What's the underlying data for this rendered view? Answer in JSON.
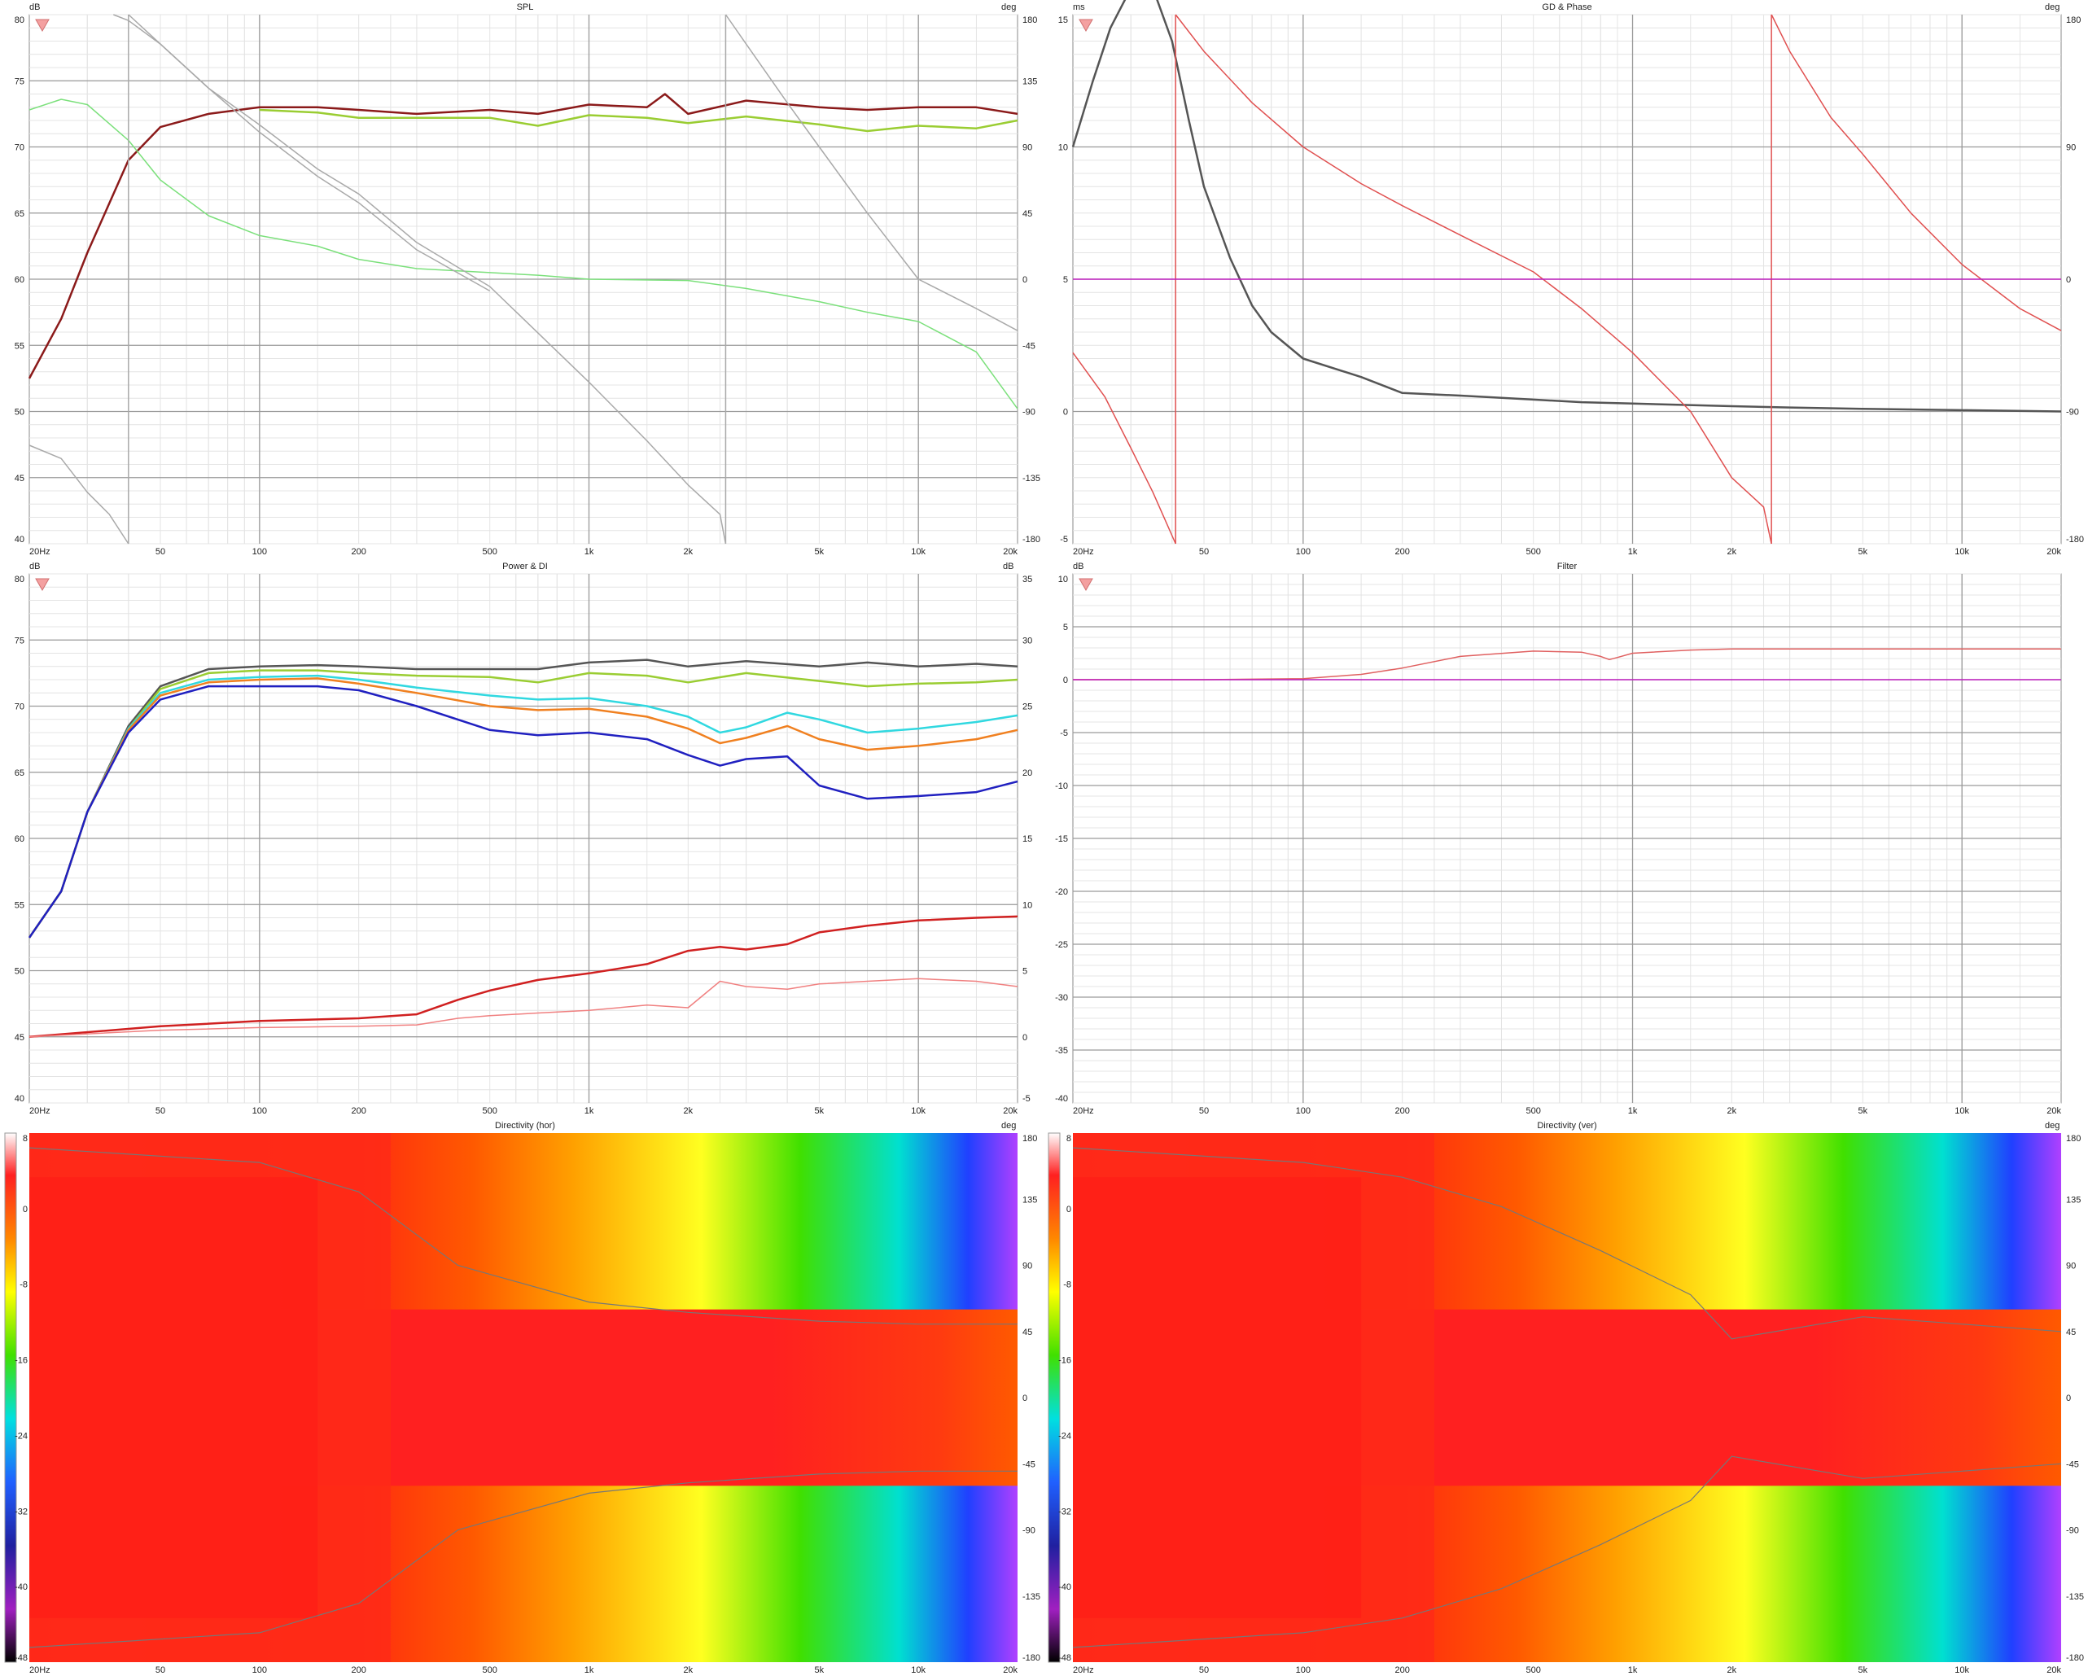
{
  "freq_ticks": [
    "20Hz",
    "50",
    "100",
    "200",
    "500",
    "1k",
    "2k",
    "5k",
    "10k",
    "20k"
  ],
  "panels": {
    "spl": {
      "title": "SPL",
      "left_unit": "dB",
      "right_unit": "deg",
      "left_ticks": [
        "75",
        "70",
        "65",
        "60",
        "55",
        "50",
        "45",
        "40"
      ],
      "left_top_label": "",
      "right_ticks": [
        "180",
        "135",
        "90",
        "45",
        "0",
        "-45",
        "-90",
        "-135",
        "-180"
      ]
    },
    "gd": {
      "title": "GD & Phase",
      "left_unit": "ms",
      "right_unit": "deg",
      "left_ticks": [
        "15",
        "10",
        "5",
        "0",
        "-5"
      ],
      "right_ticks": [
        "180",
        "90",
        "0",
        "-90",
        "-180"
      ]
    },
    "power": {
      "title": "Power & DI",
      "left_unit": "dB",
      "right_unit": "dB",
      "left_ticks": [
        "80",
        "75",
        "70",
        "65",
        "60",
        "55",
        "50",
        "45",
        "40"
      ],
      "right_ticks": [
        "35",
        "30",
        "25",
        "20",
        "15",
        "10",
        "5",
        "0",
        "-5"
      ]
    },
    "filter": {
      "title": "Filter",
      "left_unit": "dB",
      "left_ticks": [
        "10",
        "5",
        "0",
        "-5",
        "-10",
        "-15",
        "-20",
        "-25",
        "-30",
        "-35",
        "-40"
      ]
    },
    "dir_h": {
      "title": "Directivity (hor)",
      "right_unit": "deg",
      "scale_ticks": [
        "8",
        "0",
        "-8",
        "-16",
        "-24",
        "-32",
        "-40",
        "-48"
      ],
      "right_ticks": [
        "180",
        "135",
        "90",
        "45",
        "0",
        "-45",
        "-90",
        "-135",
        "-180"
      ]
    },
    "dir_v": {
      "title": "Directivity (ver)",
      "right_unit": "deg",
      "scale_ticks": [
        "8",
        "0",
        "-8",
        "-16",
        "-24",
        "-32",
        "-40",
        "-48"
      ],
      "right_ticks": [
        "180",
        "135",
        "90",
        "45",
        "0",
        "-45",
        "-90",
        "-135",
        "-180"
      ]
    }
  },
  "colors": {
    "on_axis": "#8b1a1a",
    "listening_window": "#9acd32",
    "spl_green": "#7be07b",
    "phase_gray": "#a9a9a9",
    "gd_gray": "#555555",
    "phase_red": "#e05050",
    "zero_line": "#c020c0",
    "ew": "#30d8e0",
    "pir": "#f08020",
    "sp": "#2020c0",
    "di_sp": "#d02020",
    "di_er": "#f08080",
    "filter": "#e06060"
  },
  "chart_data": [
    {
      "type": "line",
      "title": "SPL",
      "xscale": "log",
      "xlim": [
        20,
        20000
      ],
      "ylim": [
        40,
        80
      ],
      "y2lim": [
        -180,
        180
      ],
      "series": [
        {
          "color_key": "on_axis",
          "x": [
            20,
            25,
            30,
            40,
            50,
            70,
            100,
            150,
            200,
            300,
            500,
            700,
            1000,
            1500,
            1700,
            2000,
            3000,
            5000,
            7000,
            10000,
            15000,
            20000
          ],
          "y": [
            52.5,
            57,
            62,
            69,
            71.5,
            72.5,
            73,
            73,
            72.8,
            72.5,
            72.8,
            72.5,
            73.2,
            73,
            74,
            72.5,
            73.5,
            73,
            72.8,
            73,
            73,
            72.5
          ]
        },
        {
          "color_key": "listening_window",
          "x": [
            100,
            150,
            200,
            300,
            500,
            700,
            1000,
            1500,
            2000,
            3000,
            5000,
            7000,
            10000,
            15000,
            20000
          ],
          "y": [
            72.8,
            72.6,
            72.2,
            72.2,
            72.2,
            71.6,
            72.4,
            72.2,
            71.8,
            72.3,
            71.7,
            71.2,
            71.6,
            71.4,
            72
          ]
        },
        {
          "color_key": "spl_green",
          "x": [
            20,
            25,
            30,
            40,
            50,
            70,
            100,
            150,
            200,
            300,
            500,
            700,
            1000,
            2000,
            3000,
            5000,
            7000,
            10000,
            15000,
            20000
          ],
          "y": [
            72.8,
            73.6,
            73.2,
            70.5,
            67.5,
            64.8,
            63.3,
            62.5,
            61.5,
            60.8,
            60.5,
            60.3,
            60,
            59.9,
            59.3,
            58.3,
            57.5,
            56.8,
            54.5,
            50.2
          ]
        },
        {
          "color_key": "phase_gray",
          "axis": "right",
          "x": [
            20,
            25,
            30,
            35,
            40,
            40.01,
            50,
            70,
            100,
            150,
            200,
            300,
            500,
            1000,
            1500,
            2000,
            2500,
            2600,
            2601,
            3000,
            4000,
            5000,
            7000,
            10000,
            15000,
            20000
          ],
          "y": [
            -113,
            -122,
            -145,
            -160,
            -180,
            180,
            160,
            130,
            105,
            75,
            58,
            25,
            -5,
            -70,
            -110,
            -140,
            -160,
            -180,
            180,
            160,
            120,
            90,
            45,
            0,
            -20,
            -35
          ]
        },
        {
          "color_key": "phase_gray",
          "axis": "right",
          "x": [
            36,
            40,
            50,
            70,
            100,
            150,
            200,
            300,
            500
          ],
          "y": [
            180,
            176,
            160,
            130,
            100,
            70,
            52,
            20,
            -8
          ]
        }
      ]
    },
    {
      "type": "line",
      "title": "GD & Phase",
      "xscale": "log",
      "xlim": [
        20,
        20000
      ],
      "ylim": [
        -5,
        15
      ],
      "y2lim": [
        -180,
        180
      ],
      "series": [
        {
          "color_key": "gd_gray",
          "x": [
            20,
            23,
            26,
            30,
            35,
            40,
            45,
            50,
            60,
            70,
            80,
            100,
            150,
            200,
            300,
            500,
            700,
            1000,
            2000,
            3000,
            5000,
            10000,
            20000
          ],
          "y": [
            10,
            12.5,
            14.5,
            16,
            16,
            14,
            11,
            8.5,
            5.8,
            4,
            3,
            2,
            1.3,
            0.7,
            0.6,
            0.45,
            0.35,
            0.3,
            0.2,
            0.15,
            0.1,
            0.05,
            0
          ]
        },
        {
          "color_key": "phase_red",
          "axis": "right",
          "x": [
            20,
            25,
            30,
            35,
            41,
            41.01,
            50,
            70,
            100,
            150,
            200,
            300,
            500,
            700,
            1000,
            1500,
            2000,
            2500,
            2640,
            2641,
            3000,
            4000,
            5000,
            7000,
            10000,
            15000,
            20000
          ],
          "y": [
            -50,
            -80,
            -115,
            -145,
            -180,
            180,
            155,
            120,
            90,
            65,
            50,
            30,
            5,
            -20,
            -50,
            -90,
            -135,
            -155,
            -180,
            180,
            155,
            110,
            85,
            45,
            10,
            -20,
            -35
          ]
        },
        {
          "color_key": "zero_line",
          "axis": "right",
          "x": [
            20,
            20000
          ],
          "y": [
            0,
            0
          ]
        }
      ]
    },
    {
      "type": "line",
      "title": "Power & DI",
      "xscale": "log",
      "xlim": [
        20,
        20000
      ],
      "ylim": [
        40,
        80
      ],
      "y2lim": [
        -5,
        35
      ],
      "series": [
        {
          "color_key": "gd_gray",
          "x": [
            20,
            25,
            30,
            40,
            50,
            70,
            100,
            150,
            200,
            300,
            500,
            700,
            1000,
            1500,
            2000,
            3000,
            5000,
            7000,
            10000,
            15000,
            20000
          ],
          "y": [
            52.5,
            56,
            62,
            68.5,
            71.5,
            72.8,
            73,
            73.1,
            73,
            72.8,
            72.8,
            72.8,
            73.3,
            73.5,
            73,
            73.4,
            73,
            73.3,
            73,
            73.2,
            73
          ]
        },
        {
          "color_key": "listening_window",
          "x": [
            20,
            25,
            30,
            40,
            50,
            70,
            100,
            150,
            200,
            300,
            500,
            700,
            1000,
            1500,
            2000,
            3000,
            5000,
            7000,
            10000,
            15000,
            20000
          ],
          "y": [
            52.5,
            56,
            62,
            68.3,
            71.3,
            72.5,
            72.7,
            72.7,
            72.5,
            72.3,
            72.2,
            71.8,
            72.5,
            72.3,
            71.8,
            72.5,
            71.9,
            71.5,
            71.7,
            71.8,
            72
          ]
        },
        {
          "color_key": "ew",
          "x": [
            20,
            25,
            30,
            40,
            50,
            70,
            100,
            150,
            200,
            300,
            500,
            700,
            1000,
            1500,
            2000,
            2500,
            3000,
            4000,
            5000,
            7000,
            10000,
            15000,
            20000
          ],
          "y": [
            52.5,
            56,
            62,
            68.3,
            71,
            72,
            72.2,
            72.3,
            72,
            71.4,
            70.8,
            70.5,
            70.6,
            70,
            69.2,
            68,
            68.4,
            69.5,
            69,
            68,
            68.3,
            68.8,
            69.3
          ]
        },
        {
          "color_key": "pir",
          "x": [
            20,
            25,
            30,
            40,
            50,
            70,
            100,
            150,
            200,
            300,
            500,
            700,
            1000,
            1500,
            2000,
            2500,
            3000,
            4000,
            5000,
            7000,
            10000,
            15000,
            20000
          ],
          "y": [
            52.5,
            56,
            62,
            68.2,
            70.8,
            71.8,
            72,
            72.1,
            71.7,
            71,
            70,
            69.7,
            69.8,
            69.2,
            68.3,
            67.2,
            67.6,
            68.5,
            67.5,
            66.7,
            67,
            67.5,
            68.2
          ]
        },
        {
          "color_key": "sp",
          "x": [
            20,
            25,
            30,
            40,
            50,
            70,
            100,
            150,
            200,
            300,
            500,
            700,
            1000,
            1500,
            2000,
            2500,
            3000,
            4000,
            5000,
            7000,
            10000,
            15000,
            20000
          ],
          "y": [
            52.5,
            56,
            62,
            68,
            70.5,
            71.5,
            71.5,
            71.5,
            71.2,
            70,
            68.2,
            67.8,
            68,
            67.5,
            66.3,
            65.5,
            66,
            66.2,
            64,
            63,
            63.2,
            63.5,
            64.3
          ]
        },
        {
          "color_key": "di_sp",
          "axis": "right",
          "x": [
            20,
            50,
            100,
            200,
            300,
            400,
            500,
            700,
            1000,
            1500,
            2000,
            2500,
            3000,
            4000,
            5000,
            7000,
            10000,
            15000,
            20000
          ],
          "y": [
            0,
            0.8,
            1.2,
            1.4,
            1.7,
            2.8,
            3.5,
            4.3,
            4.8,
            5.5,
            6.5,
            6.8,
            6.6,
            7,
            7.9,
            8.4,
            8.8,
            9,
            9.1
          ]
        },
        {
          "color_key": "di_er",
          "axis": "right",
          "x": [
            20,
            50,
            100,
            200,
            300,
            400,
            500,
            700,
            1000,
            1500,
            2000,
            2500,
            3000,
            4000,
            5000,
            7000,
            10000,
            15000,
            20000
          ],
          "y": [
            0,
            0.5,
            0.7,
            0.8,
            0.9,
            1.4,
            1.6,
            1.8,
            2,
            2.4,
            2.2,
            4.2,
            3.8,
            3.6,
            4,
            4.2,
            4.4,
            4.2,
            3.8
          ]
        }
      ]
    },
    {
      "type": "line",
      "title": "Filter",
      "xscale": "log",
      "xlim": [
        20,
        20000
      ],
      "ylim": [
        -40,
        10
      ],
      "series": [
        {
          "color_key": "filter",
          "x": [
            20,
            50,
            100,
            150,
            200,
            300,
            500,
            700,
            800,
            850,
            900,
            1000,
            1500,
            2000,
            5000,
            10000,
            20000
          ],
          "y": [
            0,
            0,
            0.1,
            0.5,
            1.1,
            2.2,
            2.7,
            2.6,
            2.2,
            1.9,
            2.1,
            2.5,
            2.8,
            2.9,
            2.9,
            2.9,
            2.9
          ]
        },
        {
          "color_key": "zero_line",
          "x": [
            20,
            20000
          ],
          "y": [
            0,
            0
          ]
        }
      ]
    },
    {
      "type": "heatmap",
      "title": "Directivity (hor)",
      "xscale": "log",
      "xlim": [
        20,
        20000
      ],
      "ylim": [
        -180,
        180
      ],
      "zlim": [
        -48,
        8
      ],
      "beamwidth_contour": {
        "x": [
          20,
          100,
          200,
          400,
          1000,
          2000,
          5000,
          10000,
          20000
        ],
        "y": [
          170,
          160,
          140,
          90,
          65,
          58,
          52,
          50,
          50
        ]
      }
    },
    {
      "type": "heatmap",
      "title": "Directivity (ver)",
      "xscale": "log",
      "xlim": [
        20,
        20000
      ],
      "ylim": [
        -180,
        180
      ],
      "zlim": [
        -48,
        8
      ],
      "beamwidth_contour": {
        "x": [
          20,
          100,
          200,
          400,
          800,
          1500,
          2000,
          5000,
          10000,
          20000
        ],
        "y": [
          170,
          160,
          150,
          130,
          100,
          70,
          40,
          55,
          50,
          45
        ]
      }
    }
  ]
}
